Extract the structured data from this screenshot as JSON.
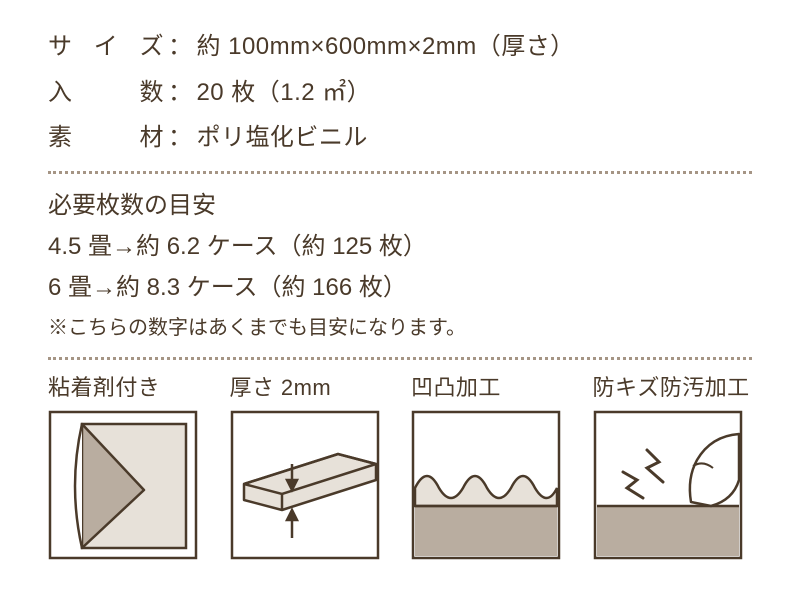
{
  "colors": {
    "text": "#4a3a2a",
    "stroke": "#4a3a2a",
    "fill_panel": "#b9ada0",
    "fill_light": "#e7e1d9",
    "background": "#ffffff",
    "dotted": "#a59585"
  },
  "typography": {
    "spec_fontsize": 24,
    "note_fontsize": 20,
    "feature_label_fontsize": 22
  },
  "specs": [
    {
      "label_chars": [
        "サ",
        "イ",
        "ズ"
      ],
      "value": "約 100mm×600mm×2mm（厚さ）"
    },
    {
      "label_chars": [
        "入",
        "数"
      ],
      "value": "20 枚（1.2 ㎡）"
    },
    {
      "label_chars": [
        "素",
        "材"
      ],
      "value": "ポリ塩化ビニル"
    }
  ],
  "spec_separator": "：",
  "guide": {
    "title": "必要枚数の目安",
    "lines": [
      "4.5 畳→約 6.2 ケース（約 125 枚）",
      "6 畳→約 8.3 ケース（約 166 枚）"
    ],
    "note": "※こちらの数字はあくまでも目安になります。"
  },
  "features": [
    {
      "id": "adhesive",
      "label": "粘着剤付き"
    },
    {
      "id": "thickness",
      "label": "厚さ 2mm"
    },
    {
      "id": "textured",
      "label": "凹凸加工"
    },
    {
      "id": "scratch",
      "label": "防キズ防汚加工"
    }
  ],
  "feature_box": {
    "size": 150,
    "stroke_width": 2.5
  }
}
